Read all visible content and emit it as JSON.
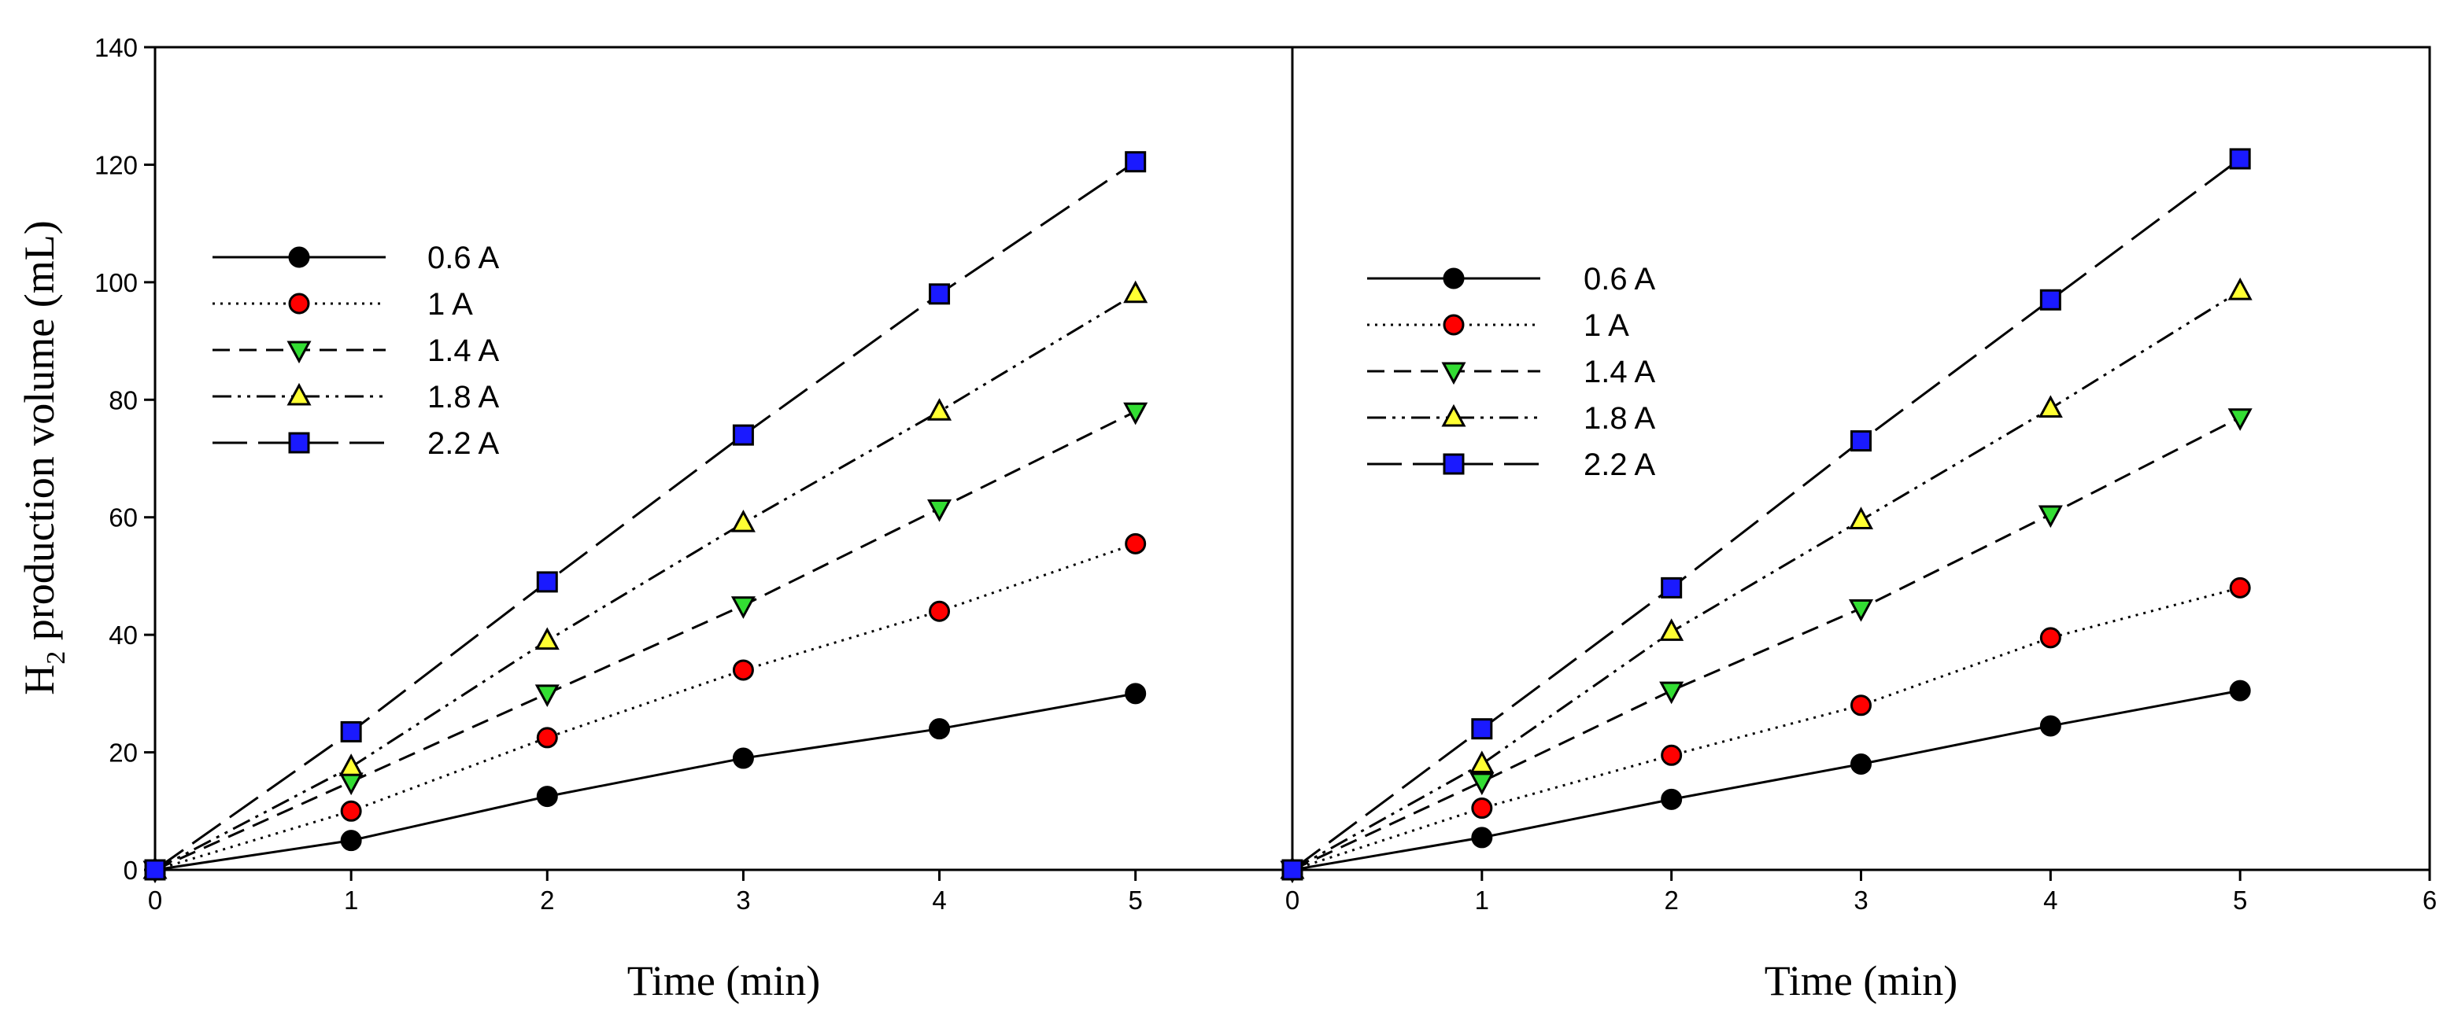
{
  "chart_data": [
    {
      "type": "line",
      "panel": "left",
      "xlabel": "Time (min)",
      "ylabel_main": "H",
      "ylabel_sub": "2",
      "ylabel_rest": " production volume (mL)",
      "xlim": [
        0,
        5.8
      ],
      "ylim": [
        0,
        140
      ],
      "xticks": [
        0,
        1,
        2,
        3,
        4,
        5
      ],
      "yticks": [
        0,
        20,
        40,
        60,
        80,
        100,
        120,
        140
      ],
      "grid": false,
      "legend_position": "upper-left",
      "x": [
        0,
        1,
        2,
        3,
        4,
        5
      ],
      "series": [
        {
          "name": "0.6 A",
          "values": [
            0,
            5,
            12.5,
            19,
            24,
            30
          ],
          "color": "#000000",
          "marker": "circle",
          "dash": "solid"
        },
        {
          "name": "1 A",
          "values": [
            0,
            10,
            22.5,
            34,
            44,
            55.5
          ],
          "color": "#ff0000",
          "marker": "circle",
          "dash": "dotted"
        },
        {
          "name": "1.4 A",
          "values": [
            0,
            15,
            30,
            45,
            61.5,
            78
          ],
          "color": "#33dd33",
          "marker": "triangle-down",
          "dash": "dashed"
        },
        {
          "name": "1.8 A",
          "values": [
            0,
            17.5,
            39,
            59,
            78,
            98
          ],
          "color": "#ffff33",
          "marker": "triangle-up",
          "dash": "dashdotdot"
        },
        {
          "name": "2.2 A",
          "values": [
            0,
            23.5,
            49,
            74,
            98,
            120.5
          ],
          "color": "#1a1aff",
          "marker": "square",
          "dash": "longdash"
        }
      ]
    },
    {
      "type": "line",
      "panel": "right",
      "xlabel": "Time (min)",
      "xlim": [
        0,
        6
      ],
      "ylim": [
        0,
        140
      ],
      "xticks": [
        0,
        1,
        2,
        3,
        4,
        5,
        6
      ],
      "grid": false,
      "legend_position": "upper-left",
      "x": [
        0,
        1,
        2,
        3,
        4,
        5
      ],
      "series": [
        {
          "name": "0.6 A",
          "values": [
            0,
            5.5,
            12,
            18,
            24.5,
            30.5
          ],
          "color": "#000000",
          "marker": "circle",
          "dash": "solid"
        },
        {
          "name": "1 A",
          "values": [
            0,
            10.5,
            19.5,
            28,
            39.5,
            48
          ],
          "color": "#ff0000",
          "marker": "circle",
          "dash": "dotted"
        },
        {
          "name": "1.4 A",
          "values": [
            0,
            15,
            30.5,
            44.5,
            60.5,
            77
          ],
          "color": "#33dd33",
          "marker": "triangle-down",
          "dash": "dashed"
        },
        {
          "name": "1.8 A",
          "values": [
            0,
            18,
            40.5,
            59.5,
            78.5,
            98.5
          ],
          "color": "#ffff33",
          "marker": "triangle-up",
          "dash": "dashdotdot"
        },
        {
          "name": "2.2 A",
          "values": [
            0,
            24,
            48,
            73,
            97,
            121
          ],
          "color": "#1a1aff",
          "marker": "square",
          "dash": "longdash"
        }
      ]
    }
  ]
}
